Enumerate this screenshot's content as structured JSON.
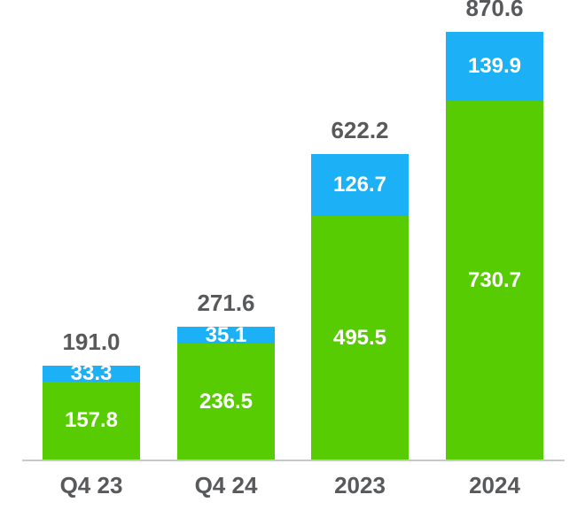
{
  "chart_data": {
    "type": "bar",
    "stacked": true,
    "categories": [
      "Q4 23",
      "Q4 24",
      "2023",
      "2024"
    ],
    "series": [
      {
        "name": "green-bottom-segment",
        "color": "#58CC02",
        "values": [
          157.8,
          236.5,
          495.5,
          730.7
        ],
        "labels": [
          "157.8",
          "236.5",
          "495.5",
          "730.7"
        ]
      },
      {
        "name": "blue-top-segment",
        "color": "#1CB0F6",
        "values": [
          33.3,
          35.1,
          126.7,
          139.9
        ],
        "labels": [
          "33.3",
          "35.1",
          "126.7",
          "139.9"
        ]
      }
    ],
    "totals": {
      "values": [
        191.0,
        271.6,
        622.2,
        870.6
      ],
      "labels": [
        "191.0",
        "271.6",
        "622.2",
        "870.6"
      ]
    },
    "ylim": [
      0,
      935
    ],
    "grid": false,
    "legend": "none",
    "xlabel": "",
    "ylabel": ""
  },
  "colors": {
    "green": "#58CC02",
    "blue": "#1CB0F6",
    "value_label_text": "#FFFFFF",
    "axis_text": "#58595B",
    "axis_line": "#C9C9C9",
    "background": "#FFFFFF"
  }
}
